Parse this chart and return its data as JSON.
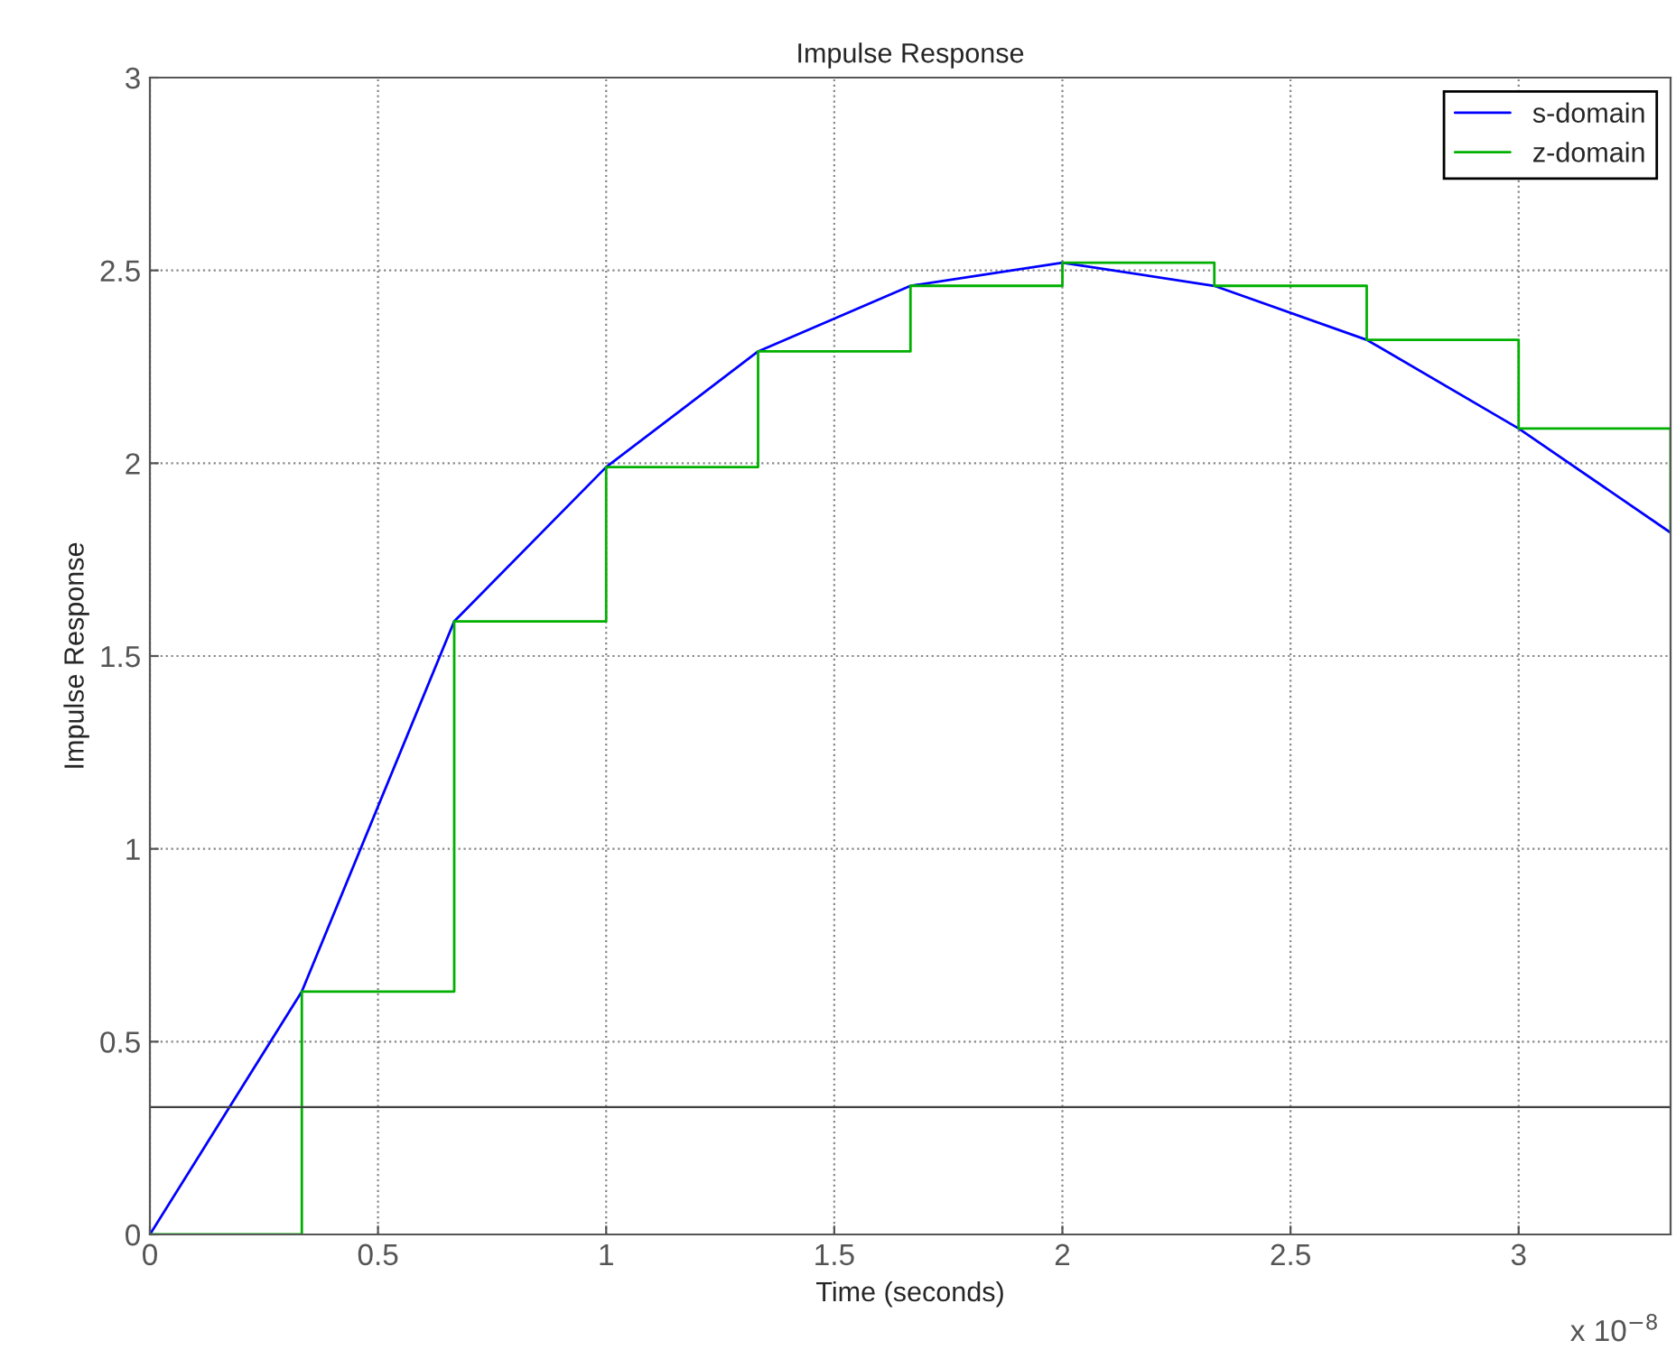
{
  "chart_data": {
    "type": "line",
    "title": "Impulse Response",
    "xlabel": "Time (seconds)",
    "ylabel": "Impulse Response",
    "series": [
      {
        "name": "s-domain",
        "color": "#0000ff",
        "x": [
          0,
          0.333,
          0.667,
          1,
          1.333,
          1.667,
          2,
          2.333,
          2.667,
          3,
          3.333
        ],
        "values": [
          0,
          0.63,
          1.59,
          1.99,
          2.29,
          2.46,
          2.52,
          2.46,
          2.32,
          2.09,
          1.82
        ]
      },
      {
        "name": "z-domain",
        "color": "#00b000",
        "type": "step",
        "x": [
          0,
          0.333,
          0.667,
          1,
          1.333,
          1.667,
          2,
          2.333,
          2.667,
          3,
          3.333
        ],
        "values": [
          0,
          0.63,
          1.59,
          1.99,
          2.29,
          2.46,
          2.52,
          2.46,
          2.32,
          2.09,
          1.82
        ]
      }
    ],
    "xlim": [
      0,
      3.333
    ],
    "xticks": [
      0,
      0.5,
      1,
      1.5,
      2,
      2.5,
      3
    ],
    "ylim": [
      0,
      3
    ],
    "yticks": [
      0,
      0.5,
      1,
      1.5,
      2,
      2.5,
      3
    ],
    "ref_lines": [
      {
        "axis": "y",
        "value": 0.33,
        "color": "#404040"
      }
    ],
    "annotations": [
      "x 10$^{−8}$"
    ],
    "grid": true,
    "legend": "top right"
  }
}
